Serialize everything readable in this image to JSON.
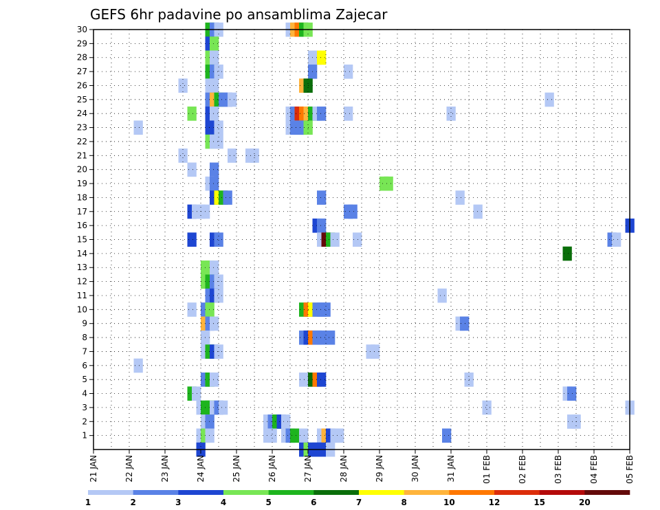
{
  "chart_data": {
    "type": "heatmap",
    "title": "GEFS 6hr padavine po ansamblima Zajecar",
    "xlabel": "",
    "ylabel": "",
    "y_ticks": [
      1,
      2,
      3,
      4,
      5,
      6,
      7,
      8,
      9,
      10,
      11,
      12,
      13,
      14,
      15,
      16,
      17,
      18,
      19,
      20,
      21,
      22,
      23,
      24,
      25,
      26,
      27,
      28,
      29,
      30
    ],
    "x_ticks": [
      "21 JAN",
      "22 JAN",
      "23 JAN",
      "24 JAN",
      "25 JAN",
      "26 JAN",
      "27 JAN",
      "28 JAN",
      "29 JAN",
      "30 JAN",
      "31 JAN",
      "01 FEB",
      "02 FEB",
      "03 FEB",
      "04 FEB",
      "05 FEB"
    ],
    "x_range_days": [
      0,
      15
    ],
    "y_range": [
      0,
      30
    ],
    "grid": true,
    "colorbar": {
      "levels": [
        "1",
        "2",
        "3",
        "4",
        "5",
        "6",
        "7",
        "8",
        "10",
        "12",
        "15",
        "20"
      ],
      "colors": [
        "#b4c8f5",
        "#5a82e6",
        "#1e46d2",
        "#78e655",
        "#1eb41e",
        "#0a6e0a",
        "#ffff00",
        "#ffb43c",
        "#ff7800",
        "#dc2d0a",
        "#b40a0a",
        "#640a0a"
      ]
    },
    "cells_note": "each cell = [day_offset_from_21JAN, member, color_class_index]",
    "cells": [
      [
        3.125,
        30,
        4
      ],
      [
        3.25,
        30,
        1
      ],
      [
        3.375,
        30,
        0
      ],
      [
        5.375,
        30,
        0
      ],
      [
        5.5,
        30,
        7
      ],
      [
        5.625,
        30,
        8
      ],
      [
        5.75,
        30,
        4
      ],
      [
        5.875,
        30,
        3
      ],
      [
        3.125,
        29,
        2
      ],
      [
        3.25,
        29,
        3
      ],
      [
        3.125,
        28,
        3
      ],
      [
        3.25,
        28,
        0
      ],
      [
        6.0,
        28,
        0
      ],
      [
        6.125,
        28,
        0
      ],
      [
        6.25,
        28,
        6
      ],
      [
        3.125,
        27,
        4
      ],
      [
        3.25,
        27,
        1
      ],
      [
        3.375,
        27,
        0
      ],
      [
        6.0,
        27,
        1
      ],
      [
        7.0,
        27,
        0
      ],
      [
        2.375,
        26,
        0
      ],
      [
        3.125,
        26,
        0
      ],
      [
        3.25,
        26,
        0
      ],
      [
        5.75,
        26,
        7
      ],
      [
        5.875,
        26,
        5
      ],
      [
        3.125,
        25,
        1
      ],
      [
        3.25,
        25,
        7
      ],
      [
        3.375,
        25,
        4
      ],
      [
        3.5,
        25,
        1
      ],
      [
        3.625,
        25,
        1
      ],
      [
        3.75,
        25,
        0
      ],
      [
        12.625,
        25,
        0
      ],
      [
        2.625,
        24,
        3
      ],
      [
        3.125,
        24,
        2
      ],
      [
        3.25,
        24,
        0
      ],
      [
        5.375,
        24,
        0
      ],
      [
        5.5,
        24,
        1
      ],
      [
        5.625,
        24,
        9
      ],
      [
        5.75,
        24,
        8
      ],
      [
        5.875,
        24,
        7
      ],
      [
        6.0,
        24,
        4
      ],
      [
        6.125,
        24,
        0
      ],
      [
        6.25,
        24,
        1
      ],
      [
        7.0,
        24,
        0
      ],
      [
        9.875,
        24,
        0
      ],
      [
        1.125,
        23,
        0
      ],
      [
        3.125,
        23,
        2
      ],
      [
        3.375,
        23,
        0
      ],
      [
        5.375,
        23,
        0
      ],
      [
        5.5,
        23,
        1
      ],
      [
        5.625,
        23,
        1
      ],
      [
        5.75,
        23,
        1
      ],
      [
        5.875,
        23,
        3
      ],
      [
        3.125,
        22,
        3
      ],
      [
        3.25,
        22,
        0
      ],
      [
        3.375,
        22,
        0
      ],
      [
        2.375,
        21,
        0
      ],
      [
        3.75,
        21,
        0
      ],
      [
        4.25,
        21,
        0
      ],
      [
        4.375,
        21,
        0
      ],
      [
        2.625,
        20,
        0
      ],
      [
        3.25,
        20,
        1
      ],
      [
        3.125,
        19,
        0
      ],
      [
        3.25,
        19,
        1
      ],
      [
        8.0,
        19,
        3
      ],
      [
        8.125,
        19,
        3
      ],
      [
        3.25,
        18,
        2
      ],
      [
        3.375,
        18,
        6
      ],
      [
        3.5,
        18,
        4
      ],
      [
        3.625,
        18,
        1
      ],
      [
        6.25,
        18,
        1
      ],
      [
        10.125,
        18,
        0
      ],
      [
        2.625,
        17,
        2
      ],
      [
        2.75,
        17,
        0
      ],
      [
        2.875,
        17,
        0
      ],
      [
        3.0,
        17,
        0
      ],
      [
        7.0,
        17,
        1
      ],
      [
        7.125,
        17,
        1
      ],
      [
        10.625,
        17,
        0
      ],
      [
        6.125,
        16,
        2
      ],
      [
        6.25,
        16,
        1
      ],
      [
        14.875,
        16,
        2
      ],
      [
        2.625,
        15,
        2
      ],
      [
        3.25,
        15,
        2
      ],
      [
        3.375,
        15,
        1
      ],
      [
        6.25,
        15,
        0
      ],
      [
        6.375,
        15,
        11
      ],
      [
        6.5,
        15,
        4
      ],
      [
        6.625,
        15,
        0
      ],
      [
        7.25,
        15,
        0
      ],
      [
        14.375,
        15,
        1
      ],
      [
        14.5,
        15,
        0
      ],
      [
        13.125,
        14,
        5
      ],
      [
        3.0,
        13,
        3
      ],
      [
        3.125,
        13,
        3
      ],
      [
        3.25,
        13,
        0
      ],
      [
        3.0,
        12,
        3
      ],
      [
        3.125,
        12,
        4
      ],
      [
        3.25,
        12,
        1
      ],
      [
        3.375,
        12,
        0
      ],
      [
        3.125,
        11,
        1
      ],
      [
        3.25,
        11,
        2
      ],
      [
        3.375,
        11,
        0
      ],
      [
        9.625,
        11,
        0
      ],
      [
        2.625,
        10,
        0
      ],
      [
        3.0,
        10,
        1
      ],
      [
        3.125,
        10,
        3
      ],
      [
        5.75,
        10,
        4
      ],
      [
        5.875,
        10,
        8
      ],
      [
        6.0,
        10,
        6
      ],
      [
        6.125,
        10,
        1
      ],
      [
        6.25,
        10,
        1
      ],
      [
        6.375,
        10,
        1
      ],
      [
        3.0,
        9,
        7
      ],
      [
        3.125,
        9,
        1
      ],
      [
        3.25,
        9,
        0
      ],
      [
        10.125,
        9,
        0
      ],
      [
        10.25,
        9,
        1
      ],
      [
        3.0,
        8,
        0
      ],
      [
        5.75,
        8,
        1
      ],
      [
        5.875,
        8,
        2
      ],
      [
        6.0,
        8,
        8
      ],
      [
        6.125,
        8,
        1
      ],
      [
        6.25,
        8,
        1
      ],
      [
        6.5,
        8,
        1
      ],
      [
        3.0,
        7,
        0
      ],
      [
        3.125,
        7,
        4
      ],
      [
        3.25,
        7,
        2
      ],
      [
        3.375,
        7,
        0
      ],
      [
        7.625,
        7,
        0
      ],
      [
        7.75,
        7,
        0
      ],
      [
        1.125,
        6,
        0
      ],
      [
        3.0,
        5,
        1
      ],
      [
        3.125,
        5,
        4
      ],
      [
        3.25,
        5,
        0
      ],
      [
        5.75,
        5,
        0
      ],
      [
        6.0,
        5,
        5
      ],
      [
        6.125,
        5,
        8
      ],
      [
        6.25,
        5,
        2
      ],
      [
        10.375,
        5,
        0
      ],
      [
        2.625,
        4,
        4
      ],
      [
        2.75,
        4,
        0
      ],
      [
        13.125,
        4,
        0
      ],
      [
        13.25,
        4,
        1
      ],
      [
        2.875,
        3,
        0
      ],
      [
        3.0,
        3,
        4
      ],
      [
        3.125,
        3,
        4
      ],
      [
        3.25,
        3,
        0
      ],
      [
        3.375,
        3,
        1
      ],
      [
        3.5,
        3,
        0
      ],
      [
        10.875,
        3,
        0
      ],
      [
        14.875,
        3,
        0
      ],
      [
        3.0,
        2,
        0
      ],
      [
        3.125,
        2,
        1
      ],
      [
        4.75,
        2,
        0
      ],
      [
        4.875,
        2,
        1
      ],
      [
        5.0,
        2,
        4
      ],
      [
        5.125,
        2,
        2
      ],
      [
        5.25,
        2,
        0
      ],
      [
        13.25,
        2,
        0
      ],
      [
        13.375,
        2,
        0
      ],
      [
        2.875,
        1,
        0
      ],
      [
        3.0,
        1,
        3
      ],
      [
        3.125,
        1,
        0
      ],
      [
        4.75,
        1,
        0
      ],
      [
        4.875,
        1,
        0
      ],
      [
        5.25,
        1,
        0
      ],
      [
        5.375,
        1,
        1
      ],
      [
        5.5,
        1,
        4
      ],
      [
        5.75,
        1,
        0
      ],
      [
        6.25,
        1,
        0
      ],
      [
        6.375,
        1,
        7
      ],
      [
        6.5,
        1,
        2
      ],
      [
        6.625,
        1,
        0
      ],
      [
        6.75,
        1,
        0
      ],
      [
        9.75,
        1,
        1
      ],
      [
        2.875,
        0,
        2
      ],
      [
        5.75,
        0,
        2
      ],
      [
        5.875,
        0,
        3
      ],
      [
        6.0,
        0,
        2
      ],
      [
        6.125,
        0,
        2
      ],
      [
        6.25,
        0,
        2
      ],
      [
        6.5,
        0,
        0
      ]
    ]
  }
}
